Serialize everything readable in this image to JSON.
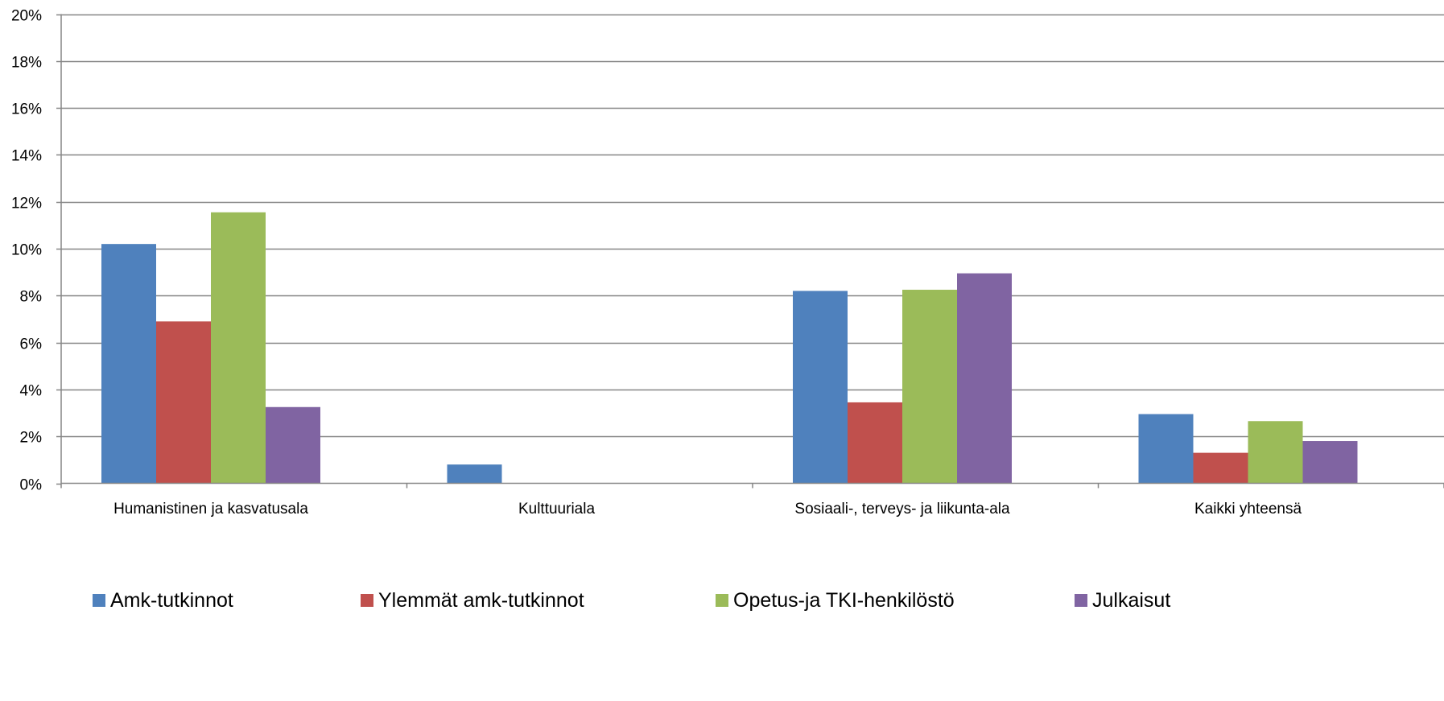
{
  "chart_data": {
    "type": "bar",
    "title": "",
    "xlabel": "",
    "ylabel": "",
    "categories": [
      "Humanistinen ja kasvatusala",
      "Kulttuuriala",
      "Sosiaali-, terveys- ja liikunta-ala",
      "Kaikki yhteensä"
    ],
    "series": [
      {
        "name": "Amk-tutkinnot",
        "color": "#4F81BD",
        "values": [
          10.2,
          0.8,
          8.2,
          2.95
        ]
      },
      {
        "name": "Ylemmät amk-tutkinnot",
        "color": "#C0504D",
        "values": [
          6.9,
          0,
          3.45,
          1.3
        ]
      },
      {
        "name": "Opetus-ja TKI-henkilöstö",
        "color": "#9BBB59",
        "values": [
          11.55,
          0,
          8.25,
          2.65
        ]
      },
      {
        "name": "Julkaisut",
        "color": "#8064A2",
        "values": [
          3.25,
          0,
          8.95,
          1.8
        ]
      }
    ],
    "ylim": [
      0,
      20
    ],
    "yticks": [
      0,
      2,
      4,
      6,
      8,
      10,
      12,
      14,
      16,
      18,
      20
    ],
    "ytick_labels": [
      "0%",
      "2%",
      "4%",
      "6%",
      "8%",
      "10%",
      "12%",
      "14%",
      "16%",
      "18%",
      "20%"
    ],
    "grid": true,
    "legend_position": "bottom",
    "gridline_color": "#868686",
    "axis_color": "#868686"
  }
}
